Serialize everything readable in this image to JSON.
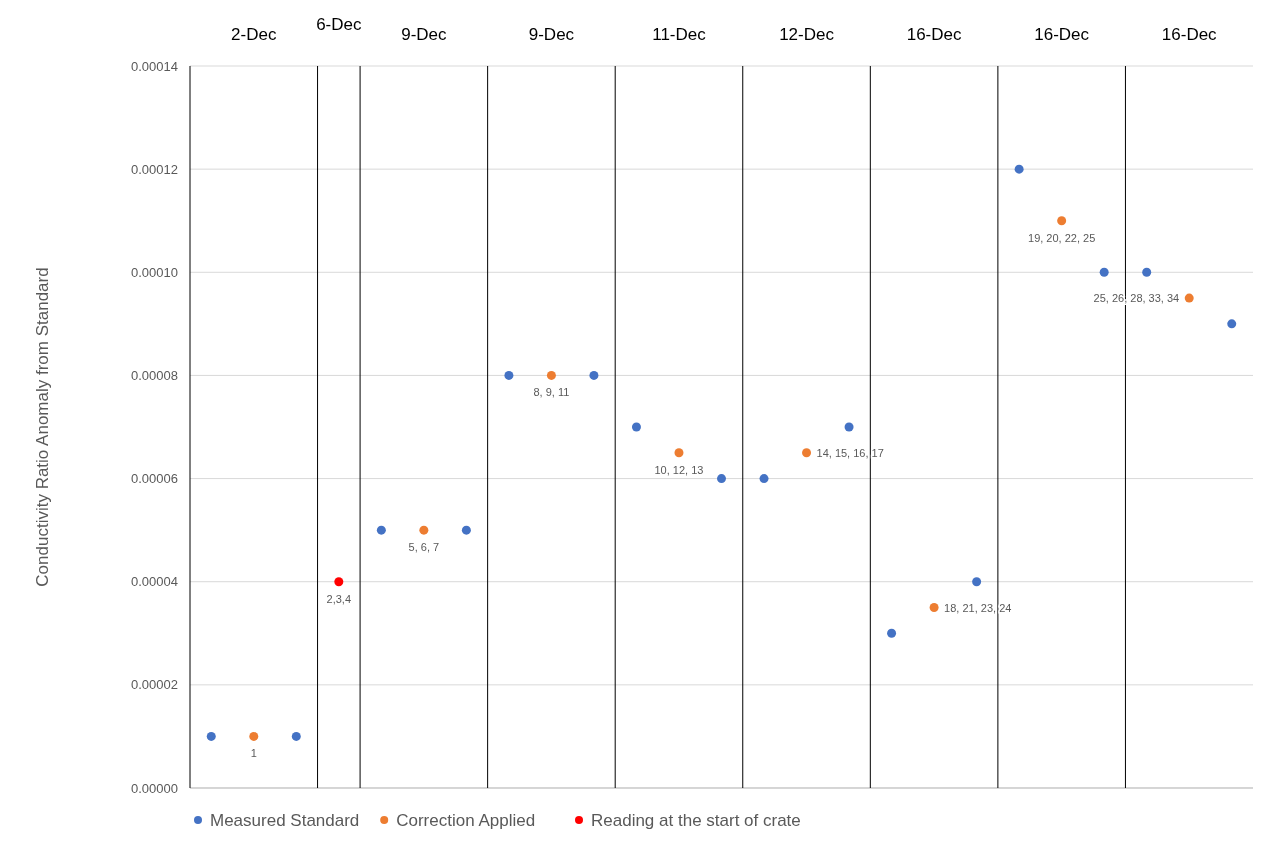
{
  "chart_data": {
    "type": "scatter",
    "ylabel": "Conductivity Ratio Anomaly from Standard",
    "categories": [
      null,
      null,
      null,
      null,
      null,
      null,
      null,
      null,
      null,
      null,
      null,
      null,
      null,
      null,
      null,
      null,
      null,
      null,
      null,
      null,
      null,
      null,
      null,
      null,
      null
    ],
    "ylim": [
      0,
      0.00014
    ],
    "yticks": [
      {
        "value": 0,
        "label": "0.00000"
      },
      {
        "value": 2e-05,
        "label": "0.00002"
      },
      {
        "value": 4e-05,
        "label": "0.00004"
      },
      {
        "value": 6e-05,
        "label": "0.00006"
      },
      {
        "value": 8e-05,
        "label": "0.00008"
      },
      {
        "value": 0.0001,
        "label": "0.00010"
      },
      {
        "value": 0.00012,
        "label": "0.00012"
      },
      {
        "value": 0.00014,
        "label": "0.00014"
      }
    ],
    "grid": "y",
    "legend": "bottom",
    "marker": "circle",
    "series": [
      {
        "name": "Measured Standard",
        "color": "#4472c4",
        "values": [
          1e-05,
          null,
          1e-05,
          null,
          5e-05,
          null,
          5e-05,
          8e-05,
          null,
          8e-05,
          7e-05,
          null,
          6e-05,
          6e-05,
          null,
          7e-05,
          3e-05,
          null,
          4e-05,
          0.00012,
          null,
          0.0001,
          0.0001,
          null,
          9e-05
        ]
      },
      {
        "name": "Correction Applied",
        "color": "#ed7d31",
        "values": [
          null,
          1e-05,
          null,
          null,
          null,
          5e-05,
          null,
          null,
          8e-05,
          null,
          null,
          6.5e-05,
          null,
          null,
          6.5e-05,
          null,
          null,
          3.5e-05,
          null,
          null,
          0.00011,
          null,
          null,
          9.5e-05,
          null
        ]
      },
      {
        "name": "Reading at the start of crate",
        "color": "#ff0000",
        "values": [
          null,
          null,
          null,
          4e-05,
          null,
          null,
          null,
          null,
          null,
          null,
          null,
          null,
          null,
          null,
          null,
          null,
          null,
          null,
          null,
          null,
          null,
          null,
          null,
          null,
          null
        ]
      }
    ],
    "annotations": [
      "2-Dec",
      "6-Dec",
      "9-Dec",
      "9-Dec",
      "11-Dec",
      "12-Dec",
      "16-Dec",
      "16-Dec",
      "16-Dec",
      "1",
      "2,3,4",
      "5, 6, 7",
      "8, 9, 11",
      "10, 12, 13",
      "14, 15, 16, 17",
      "18, 21, 23, 24",
      "19, 20, 22, 25",
      "25, 26, 28, 33, 34"
    ]
  }
}
